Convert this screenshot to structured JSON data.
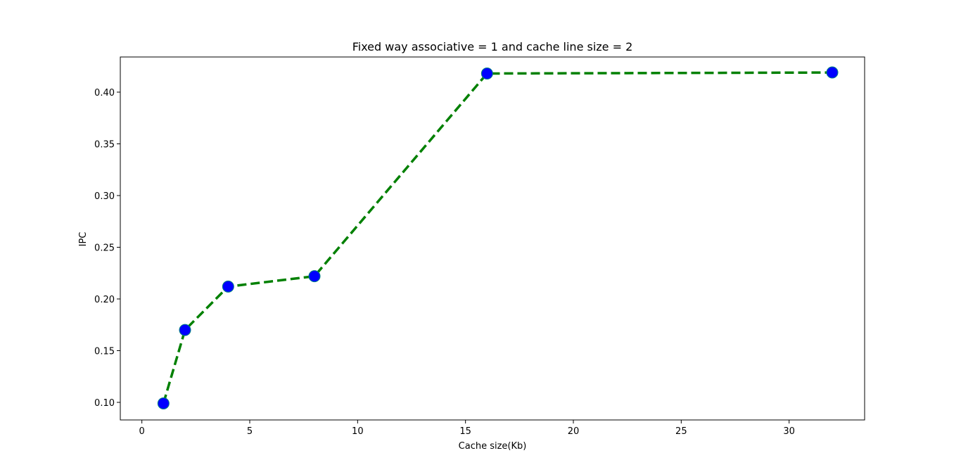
{
  "chart_data": {
    "type": "line",
    "title": "Fixed way associative = 1 and cache line size = 2",
    "xlabel": "Cache size(Kb)",
    "ylabel": "IPC",
    "xlim": [
      -1.0,
      33.5
    ],
    "ylim": [
      0.083,
      0.434
    ],
    "xticks": [
      0,
      5,
      10,
      15,
      20,
      25,
      30
    ],
    "xtick_labels": [
      "0",
      "5",
      "10",
      "15",
      "20",
      "25",
      "30"
    ],
    "yticks": [
      0.1,
      0.15,
      0.2,
      0.25,
      0.3,
      0.35,
      0.4
    ],
    "ytick_labels": [
      "0.10",
      "0.15",
      "0.20",
      "0.25",
      "0.30",
      "0.35",
      "0.40"
    ],
    "grid": false,
    "series": [
      {
        "x": [
          1,
          2,
          4,
          8,
          16,
          32
        ],
        "values": [
          0.099,
          0.17,
          0.212,
          0.222,
          0.418,
          0.419
        ],
        "line_color": "#008000",
        "line_style": "dashed",
        "marker": "circle",
        "marker_face_color": "#0000ff",
        "marker_edge_color": "#008080"
      }
    ]
  }
}
